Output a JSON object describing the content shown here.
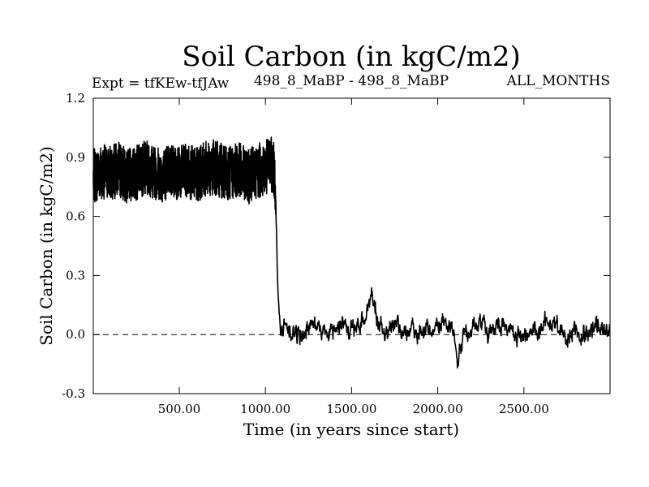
{
  "chart_data": {
    "type": "line",
    "title": "Soil Carbon (in kgC/m2)",
    "subtitle_left": "Expt = tfKEw-tfJAw",
    "subtitle_center": "498_8_MaBP - 498_8_MaBP",
    "subtitle_right": "ALL_MONTHS",
    "xlabel": "Time (in years since start)",
    "ylabel": "Soil Carbon (in kgC/m2)",
    "xlim": [
      1,
      3000
    ],
    "ylim": [
      -0.3,
      1.2
    ],
    "x_ticks": [
      500,
      1000,
      1500,
      2000,
      2500
    ],
    "x_tick_labels": [
      "500.00",
      "1000.00",
      "1500.00",
      "2000.00",
      "2500.00"
    ],
    "y_ticks": [
      -0.3,
      0.0,
      0.3,
      0.6,
      0.9,
      1.2
    ],
    "y_tick_labels": [
      "-0.3",
      "0.0",
      "0.3",
      "0.6",
      "0.9",
      "1.2"
    ],
    "reference_line": {
      "y": 0.0,
      "style": "dashed"
    },
    "grid": false,
    "series": [
      {
        "x": [
          1,
          50,
          100,
          150,
          200,
          250,
          300,
          350,
          400,
          450,
          500,
          550,
          600,
          650,
          700,
          750,
          800,
          850,
          900,
          950,
          1000,
          1020,
          1040,
          1055,
          1065,
          1075,
          1085,
          1100,
          1150,
          1200,
          1250,
          1300,
          1350,
          1400,
          1450,
          1500,
          1550,
          1600,
          1620,
          1650,
          1700,
          1750,
          1800,
          1850,
          1900,
          1950,
          2000,
          2050,
          2100,
          2115,
          2150,
          2200,
          2250,
          2300,
          2350,
          2400,
          2450,
          2500,
          2550,
          2600,
          2650,
          2700,
          2750,
          2800,
          2850,
          2900,
          2950,
          3000
        ],
        "y": [
          0.8,
          0.83,
          0.82,
          0.84,
          0.8,
          0.82,
          0.85,
          0.83,
          0.81,
          0.84,
          0.82,
          0.83,
          0.81,
          0.84,
          0.85,
          0.83,
          0.82,
          0.84,
          0.8,
          0.83,
          0.84,
          0.87,
          0.86,
          0.82,
          0.5,
          0.15,
          0.04,
          0.02,
          0.03,
          -0.01,
          0.05,
          0.06,
          0.02,
          0.04,
          0.05,
          0.0,
          0.05,
          0.15,
          0.22,
          0.05,
          0.01,
          0.06,
          0.02,
          0.0,
          0.04,
          0.01,
          0.02,
          0.06,
          0.0,
          -0.12,
          0.03,
          0.04,
          0.05,
          0.0,
          0.07,
          0.02,
          0.01,
          -0.01,
          0.03,
          0.04,
          0.06,
          0.05,
          -0.01,
          0.02,
          0.01,
          0.04,
          0.02,
          0.03
        ]
      }
    ]
  }
}
